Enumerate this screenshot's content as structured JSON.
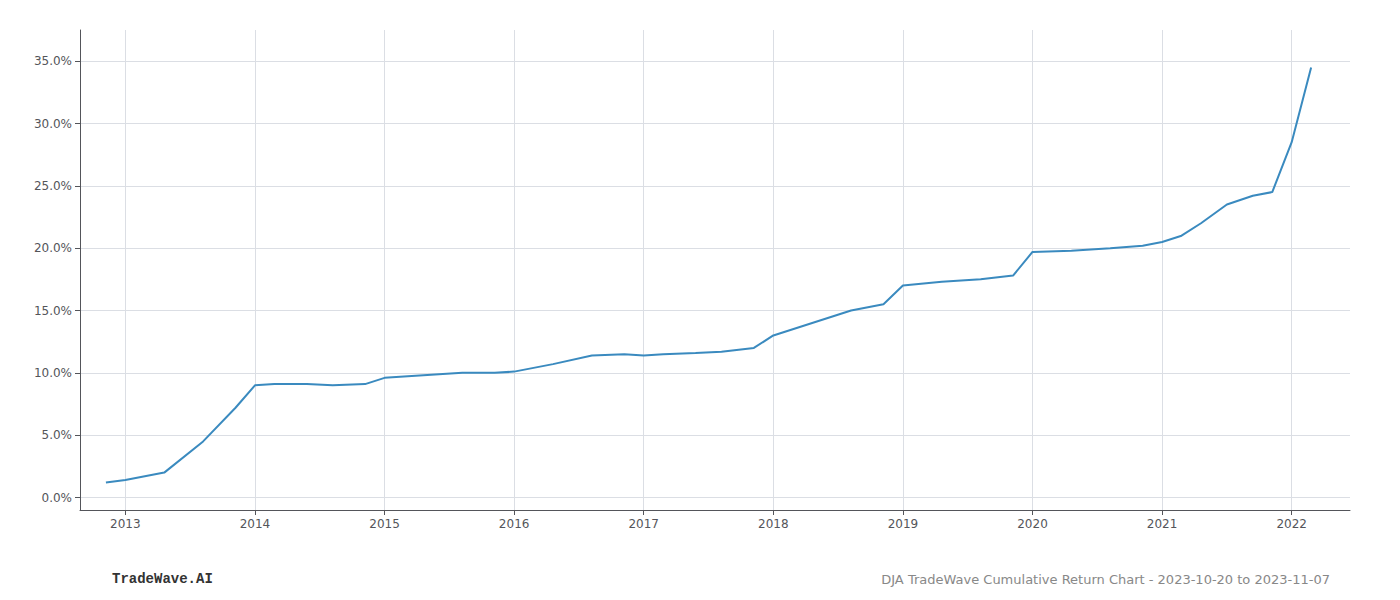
{
  "chart_data": {
    "type": "line",
    "x": [
      2012.85,
      2013.0,
      2013.3,
      2013.6,
      2013.85,
      2014.0,
      2014.15,
      2014.4,
      2014.6,
      2014.85,
      2015.0,
      2015.3,
      2015.6,
      2015.85,
      2016.0,
      2016.3,
      2016.6,
      2016.85,
      2017.0,
      2017.15,
      2017.4,
      2017.6,
      2017.85,
      2018.0,
      2018.3,
      2018.6,
      2018.85,
      2019.0,
      2019.3,
      2019.6,
      2019.85,
      2020.0,
      2020.3,
      2020.6,
      2020.85,
      2021.0,
      2021.15,
      2021.3,
      2021.5,
      2021.7,
      2021.85,
      2022.0,
      2022.15
    ],
    "values": [
      0.012,
      0.014,
      0.02,
      0.045,
      0.072,
      0.09,
      0.091,
      0.091,
      0.09,
      0.091,
      0.096,
      0.098,
      0.1,
      0.1,
      0.101,
      0.107,
      0.114,
      0.115,
      0.114,
      0.115,
      0.116,
      0.117,
      0.12,
      0.13,
      0.14,
      0.15,
      0.155,
      0.17,
      0.173,
      0.175,
      0.178,
      0.197,
      0.198,
      0.2,
      0.202,
      0.205,
      0.21,
      0.22,
      0.235,
      0.242,
      0.245,
      0.285,
      0.345
    ],
    "color": "#3a8abf",
    "xlim": [
      2012.65,
      2022.45
    ],
    "xticks": [
      2013,
      2014,
      2015,
      2016,
      2017,
      2018,
      2019,
      2020,
      2021,
      2022
    ],
    "ylim": [
      -0.01,
      0.375
    ],
    "yticks": [
      {
        "value": 0.0,
        "label": "0.0%"
      },
      {
        "value": 0.05,
        "label": "5.0%"
      },
      {
        "value": 0.1,
        "label": "10.0%"
      },
      {
        "value": 0.15,
        "label": "15.0%"
      },
      {
        "value": 0.2,
        "label": "20.0%"
      },
      {
        "value": 0.25,
        "label": "25.0%"
      },
      {
        "value": 0.3,
        "label": "30.0%"
      },
      {
        "value": 0.35,
        "label": "35.0%"
      }
    ],
    "grid": true,
    "annotations": [
      "TradeWave.AI",
      "DJA TradeWave Cumulative Return Chart - 2023-10-20 to 2023-11-07"
    ]
  }
}
